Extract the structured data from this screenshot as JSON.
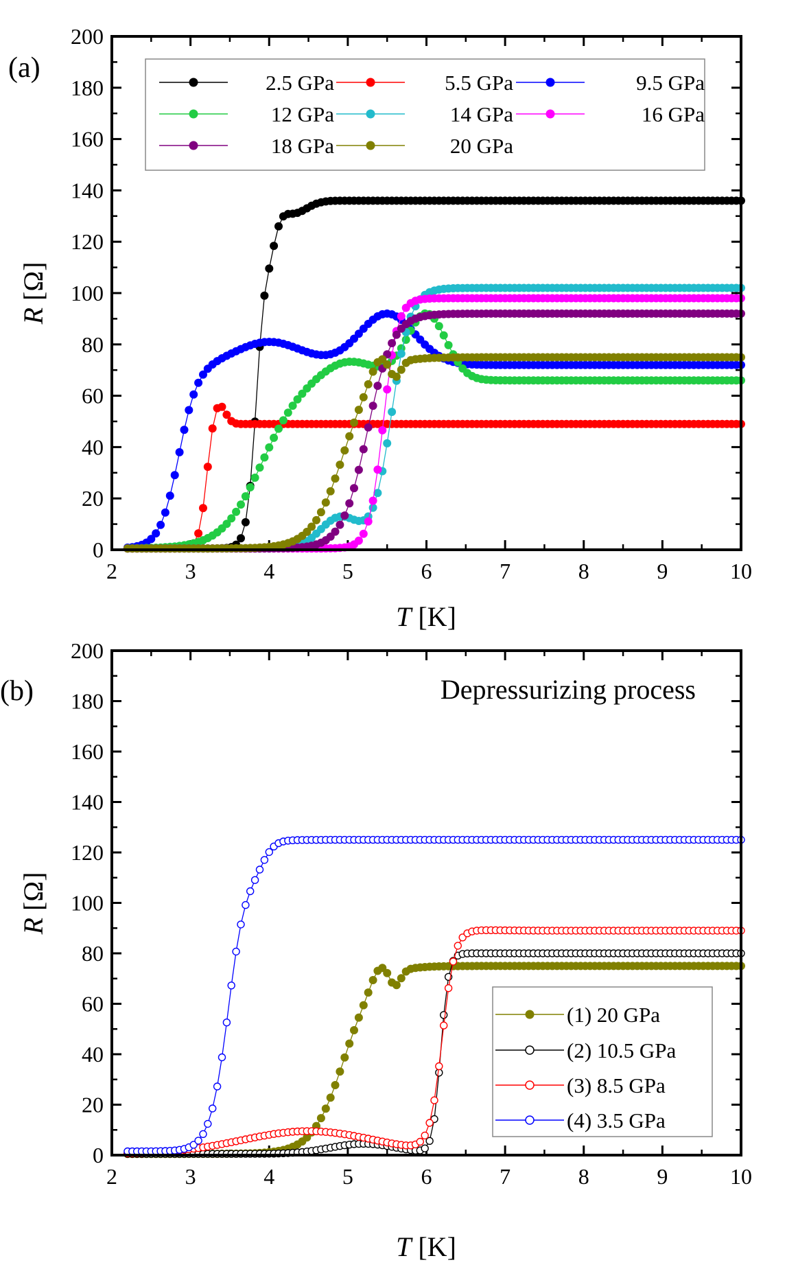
{
  "chart_data": [
    {
      "type": "scatter",
      "panel_label": "(a)",
      "xlabel_var": "T",
      "xlabel_unit": " [K]",
      "ylabel_var": "R",
      "ylabel_unit": " [Ω]",
      "xlim": [
        2,
        10
      ],
      "ylim": [
        0,
        200
      ],
      "xticks": [
        2,
        3,
        4,
        5,
        6,
        7,
        8,
        9,
        10
      ],
      "yticks": [
        0,
        20,
        40,
        60,
        80,
        100,
        120,
        140,
        160,
        180,
        200
      ],
      "legend_position": "top",
      "series": [
        {
          "name": "2.5 GPa",
          "color": "#000000",
          "marker": "filled",
          "tc": 3.85,
          "width": 0.06,
          "rn": 136,
          "foot": 0.5,
          "bumps": [
            {
              "t": 4.0,
              "amp": -15,
              "w": 0.12
            },
            {
              "t": 4.3,
              "amp": -5,
              "w": 0.25
            }
          ]
        },
        {
          "name": "5.5 GPa",
          "color": "#ff0000",
          "marker": "filled",
          "tc": 3.2,
          "width": 0.05,
          "rn": 49,
          "foot": 0.5,
          "bumps": [
            {
              "t": 3.35,
              "amp": 9,
              "w": 0.12
            }
          ]
        },
        {
          "name": "9.5 GPa",
          "color": "#0000ff",
          "marker": "filled",
          "tc": 2.85,
          "width": 0.12,
          "rn": 72,
          "foot": 0.5,
          "bumps": [
            {
              "t": 4.0,
              "amp": 9,
              "w": 0.6
            },
            {
              "t": 5.5,
              "amp": 20,
              "w": 0.5
            }
          ]
        },
        {
          "name": "12 GPa",
          "color": "#22cc44",
          "marker": "filled",
          "tc": 3.9,
          "width": 0.25,
          "rn": 66,
          "foot": 0.5,
          "bumps": [
            {
              "t": 5.0,
              "amp": 8,
              "w": 0.5
            },
            {
              "t": 6.0,
              "amp": 26,
              "w": 0.35
            }
          ]
        },
        {
          "name": "14 GPa",
          "color": "#22bbcc",
          "marker": "filled",
          "tc": 5.55,
          "width": 0.12,
          "rn": 102,
          "foot": 0.5,
          "bumps": [
            {
              "t": 4.9,
              "amp": 12,
              "w": 0.35
            }
          ]
        },
        {
          "name": "16 GPa",
          "color": "#ff00ff",
          "marker": "filled",
          "tc": 5.45,
          "width": 0.09,
          "rn": 98,
          "foot": 0.5,
          "bumps": []
        },
        {
          "name": "18 GPa",
          "color": "#800080",
          "marker": "filled",
          "tc": 5.25,
          "width": 0.16,
          "rn": 92,
          "foot": 0.5,
          "bumps": []
        },
        {
          "name": "20 GPa",
          "color": "#808000",
          "marker": "filled",
          "tc": 4.95,
          "width": 0.2,
          "rn": 75,
          "foot": 0.5,
          "bumps": [
            {
              "t": 5.4,
              "amp": 6,
              "w": 0.15
            },
            {
              "t": 5.6,
              "amp": -6,
              "w": 0.1
            }
          ]
        }
      ]
    },
    {
      "type": "scatter",
      "panel_label": "(b)",
      "annotation": "Depressurizing process",
      "xlabel_var": "T",
      "xlabel_unit": " [K]",
      "ylabel_var": "R",
      "ylabel_unit": " [Ω]",
      "xlim": [
        2,
        10
      ],
      "ylim": [
        0,
        200
      ],
      "xticks": [
        2,
        3,
        4,
        5,
        6,
        7,
        8,
        9,
        10
      ],
      "yticks": [
        0,
        20,
        40,
        60,
        80,
        100,
        120,
        140,
        160,
        180,
        200
      ],
      "legend_position": "bottom-right",
      "series": [
        {
          "name": "(1) 20 GPa",
          "color": "#808000",
          "marker": "filled",
          "tc": 4.95,
          "width": 0.2,
          "rn": 75,
          "foot": 0.5,
          "bumps": [
            {
              "t": 5.4,
              "amp": 6,
              "w": 0.15
            },
            {
              "t": 5.6,
              "amp": -6,
              "w": 0.1
            }
          ]
        },
        {
          "name": "(2) 10.5 GPa",
          "color": "#000000",
          "marker": "open",
          "tc": 6.18,
          "width": 0.05,
          "rn": 80,
          "foot": 0.5,
          "bumps": [
            {
              "t": 5.2,
              "amp": 4,
              "w": 0.6
            }
          ]
        },
        {
          "name": "(3) 8.5 GPa",
          "color": "#ff0000",
          "marker": "open",
          "tc": 6.2,
          "width": 0.08,
          "rn": 89,
          "foot": 0.5,
          "bumps": [
            {
              "t": 4.5,
              "amp": 9,
              "w": 1.2
            }
          ]
        },
        {
          "name": "(4) 3.5 GPa",
          "color": "#0000ff",
          "marker": "open",
          "tc": 3.5,
          "width": 0.12,
          "rn": 125,
          "foot": 1.5,
          "bumps": [
            {
              "t": 3.8,
              "amp": -8,
              "w": 0.2
            }
          ]
        }
      ]
    }
  ]
}
